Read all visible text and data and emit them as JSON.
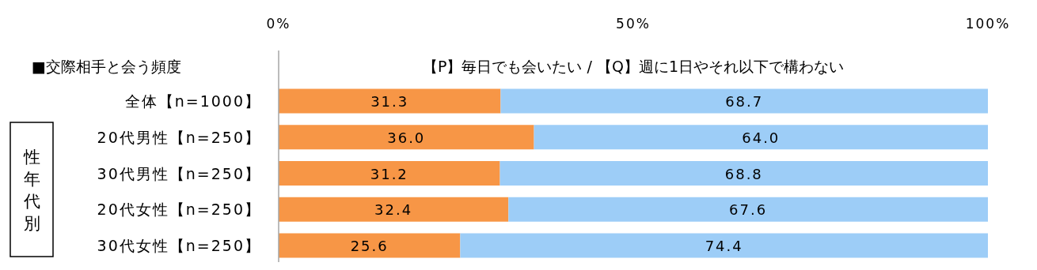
{
  "chart_data": {
    "type": "bar",
    "orientation": "horizontal",
    "stacked": true,
    "title": "■交際相手と会う頻度",
    "subtitle": "【P】毎日でも会いたい / 【Q】週に1日やそれ以下で構わない",
    "categories": [
      "全体【n=1000】",
      "20代男性【n=250】",
      "30代男性【n=250】",
      "20代女性【n=250】",
      "30代女性【n=250】"
    ],
    "series": [
      {
        "color": "#f79646",
        "values": [
          31.3,
          36.0,
          31.2,
          32.4,
          25.6
        ],
        "value_labels": [
          "31.3",
          "36.0",
          "31.2",
          "32.4",
          "25.6"
        ]
      },
      {
        "color": "#9dcdf7",
        "values": [
          68.7,
          64.0,
          68.8,
          67.6,
          74.4
        ],
        "value_labels": [
          "68.7",
          "64.0",
          "68.8",
          "67.6",
          "74.4"
        ]
      }
    ],
    "xlim": [
      0,
      100
    ],
    "xticks": [
      {
        "value": 0,
        "label": "0%"
      },
      {
        "value": 50,
        "label": "50%"
      },
      {
        "value": 100,
        "label": "100%"
      }
    ],
    "annotations": [
      "性年代別"
    ]
  }
}
